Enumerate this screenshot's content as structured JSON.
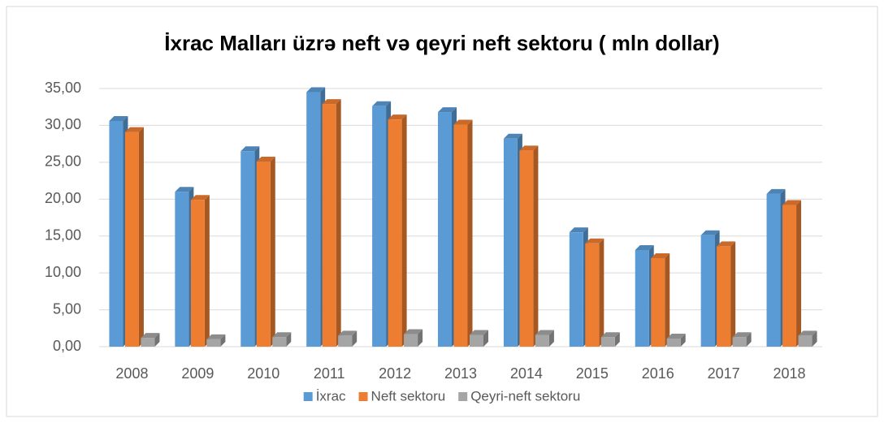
{
  "chart_data": {
    "type": "bar3d",
    "title": "İxrac Malları üzrə neft və qeyri neft sektoru ( mln dollar)",
    "categories": [
      "2008",
      "2009",
      "2010",
      "2011",
      "2012",
      "2013",
      "2014",
      "2015",
      "2016",
      "2017",
      "2018"
    ],
    "series": [
      {
        "name": "İxrac",
        "color": "#5b9bd5",
        "values": [
          30.6,
          21.0,
          26.5,
          34.5,
          32.6,
          31.8,
          28.2,
          15.5,
          13.1,
          15.1,
          20.7
        ]
      },
      {
        "name": "Neft sektoru",
        "color": "#ed7d31",
        "values": [
          29.1,
          19.9,
          25.1,
          32.9,
          30.8,
          30.1,
          26.6,
          14.0,
          12.0,
          13.6,
          19.2
        ]
      },
      {
        "name": "Qeyri-neft sektoru",
        "color": "#a5a5a5",
        "values": [
          1.2,
          1.0,
          1.3,
          1.5,
          1.7,
          1.6,
          1.6,
          1.3,
          1.1,
          1.3,
          1.5
        ]
      }
    ],
    "ylim": [
      0,
      35
    ],
    "yticks": [
      {
        "value": 0,
        "label": "0,00"
      },
      {
        "value": 5,
        "label": "5,00"
      },
      {
        "value": 10,
        "label": "10,00"
      },
      {
        "value": 15,
        "label": "15,00"
      },
      {
        "value": 20,
        "label": "20,00"
      },
      {
        "value": 25,
        "label": "25,00"
      },
      {
        "value": 30,
        "label": "30,00"
      },
      {
        "value": 35,
        "label": "35,00"
      }
    ],
    "grid": true,
    "legend": "bottom"
  }
}
